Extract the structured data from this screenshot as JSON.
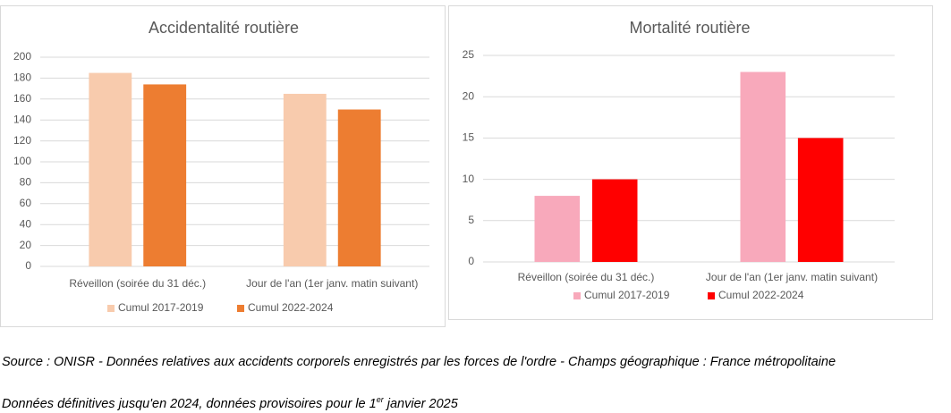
{
  "chart_data": [
    {
      "type": "bar",
      "title": "Accidentalité routière",
      "categories": [
        "Réveillon (soirée du 31 déc.)",
        "Jour de l'an (1er janv. matin suivant)"
      ],
      "series": [
        {
          "name": "Cumul 2017-2019",
          "color": "#f8cbad",
          "values": [
            185,
            165
          ]
        },
        {
          "name": "Cumul 2022-2024",
          "color": "#ed7d31",
          "values": [
            174,
            150
          ]
        }
      ],
      "ylim": [
        0,
        200
      ],
      "yticks": [
        0,
        20,
        40,
        60,
        80,
        100,
        120,
        140,
        160,
        180,
        200
      ],
      "grid": true,
      "legend": "bottom"
    },
    {
      "type": "bar",
      "title": "Mortalité routière",
      "categories": [
        "Réveillon (soirée du 31 déc.)",
        "Jour de l'an (1er janv. matin suivant)"
      ],
      "series": [
        {
          "name": "Cumul 2017-2019",
          "color": "#f8a9bb",
          "values": [
            8,
            23
          ]
        },
        {
          "name": "Cumul 2022-2024",
          "color": "#ff0000",
          "values": [
            10,
            15
          ]
        }
      ],
      "ylim": [
        0,
        25
      ],
      "yticks": [
        0,
        5,
        10,
        15,
        20,
        25
      ],
      "grid": true,
      "legend": "bottom"
    }
  ],
  "source": {
    "text": "Source : ONISR - Données relatives aux accidents corporels enregistrés par les forces de l'ordre - Champs géographique : France métropolitaine",
    "note_before": "Données définitives jusqu'en 2024, données provisoires pour le 1",
    "note_sup": "er",
    "note_after": " janvier 2025"
  }
}
